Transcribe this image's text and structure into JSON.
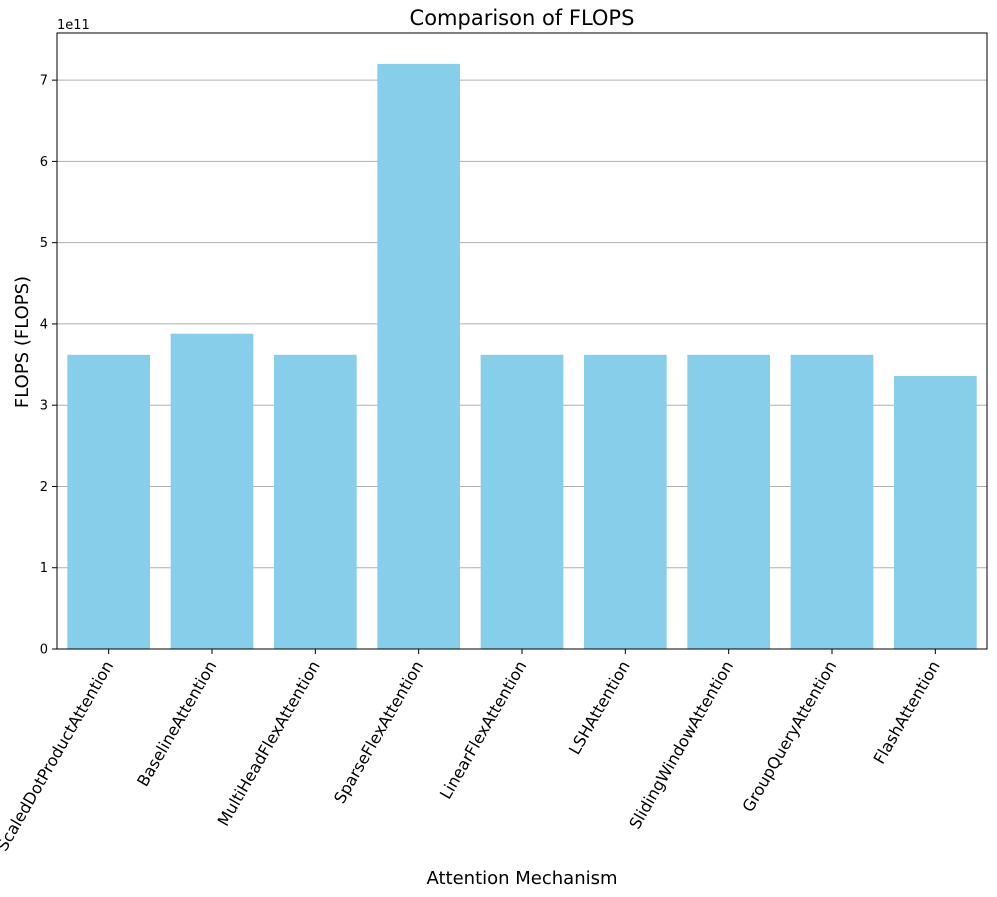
{
  "chart_data": {
    "type": "bar",
    "title": "Comparison of FLOPS",
    "xlabel": "Attention Mechanism",
    "ylabel": "FLOPS (FLOPS)",
    "y_offset_label": "1e11",
    "y_scale": 100000000000,
    "categories": [
      "ScaledDotProductAttention",
      "BaselineAttention",
      "MultiHeadFlexAttention",
      "SparseFlexAttention",
      "LinearFlexAttention",
      "LSHAttention",
      "SlidingWindowAttention",
      "GroupQueryAttention",
      "FlashAttention"
    ],
    "values": [
      362000000000,
      388000000000,
      362000000000,
      720000000000,
      362000000000,
      362000000000,
      362000000000,
      362000000000,
      336000000000
    ],
    "ylim": [
      0,
      758000000000
    ],
    "yticks": [
      0,
      1,
      2,
      3,
      4,
      5,
      6,
      7
    ],
    "grid": "y",
    "bar_color": "#87ceeb",
    "grid_color": "#b0b0b0"
  }
}
